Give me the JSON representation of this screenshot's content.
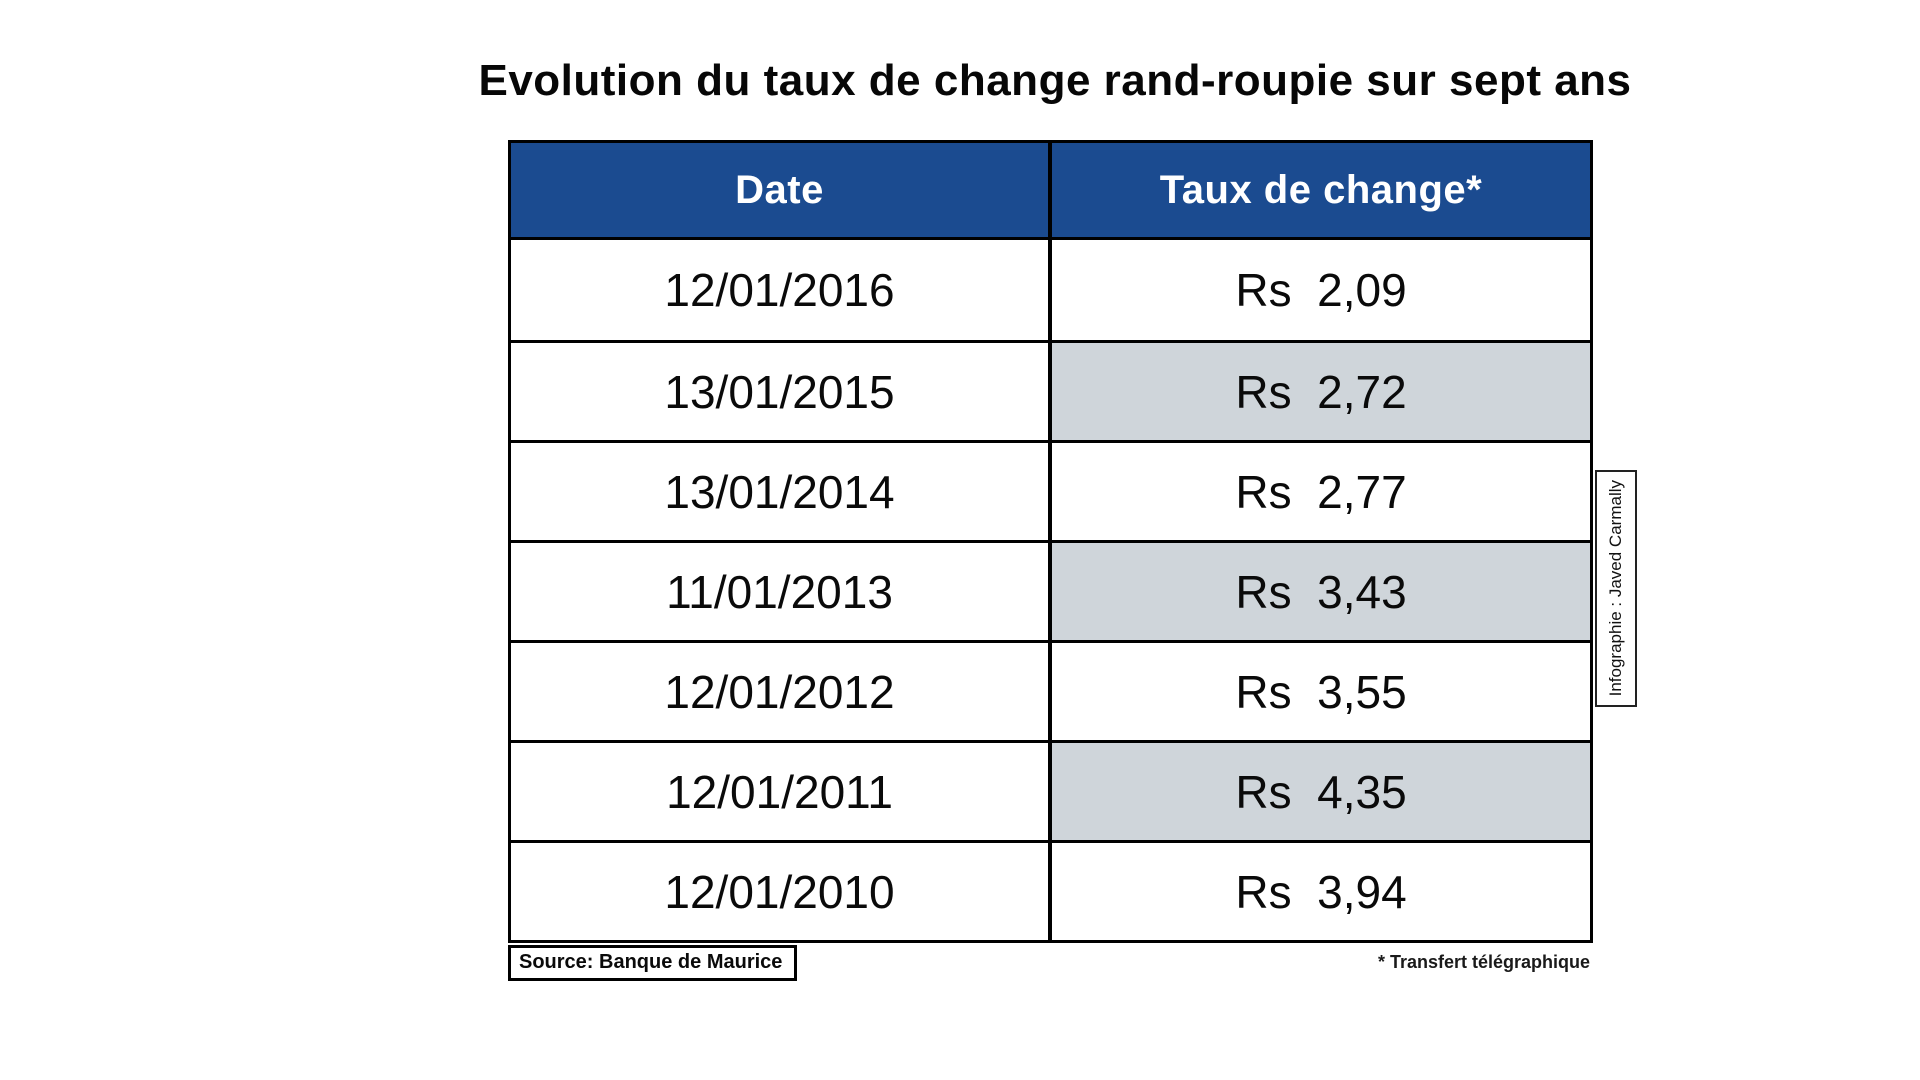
{
  "title": "Evolution du taux de change rand-roupie sur sept ans",
  "colors": {
    "page_bg": "#ffffff",
    "header_bg": "#1b4b90",
    "header_text": "#ffffff",
    "shaded_cell": "#cfd5da",
    "border": "#000000"
  },
  "table": {
    "columns": [
      "Date",
      "Taux de change*"
    ],
    "rows": [
      {
        "date": "12/01/2016",
        "rate_label": "Rs  2,09",
        "shaded": false
      },
      {
        "date": "13/01/2015",
        "rate_label": "Rs  2,72",
        "shaded": true
      },
      {
        "date": "13/01/2014",
        "rate_label": "Rs  2,77",
        "shaded": false
      },
      {
        "date": "11/01/2013",
        "rate_label": "Rs  3,43",
        "shaded": true
      },
      {
        "date": "12/01/2012",
        "rate_label": "Rs  3,55",
        "shaded": false
      },
      {
        "date": "12/01/2011",
        "rate_label": "Rs  4,35",
        "shaded": true
      },
      {
        "date": "12/01/2010",
        "rate_label": "Rs  3,94",
        "shaded": false
      }
    ]
  },
  "source": "Source: Banque de Maurice",
  "footnote": "* Transfert télégraphique",
  "credit": "Infographie : Javed Carmally",
  "chart_data": {
    "type": "table",
    "title": "Evolution du taux de change rand-roupie sur sept ans",
    "columns": [
      "Date",
      "Taux de change*"
    ],
    "dates": [
      "12/01/2016",
      "13/01/2015",
      "13/01/2014",
      "11/01/2013",
      "12/01/2012",
      "12/01/2011",
      "12/01/2010"
    ],
    "rates_rs": [
      2.09,
      2.72,
      2.77,
      3.43,
      3.55,
      4.35,
      3.94
    ],
    "currency": "Rs",
    "source": "Banque de Maurice",
    "footnote": "* Transfert télégraphique",
    "credit": "Infographie : Javed Carmally"
  }
}
